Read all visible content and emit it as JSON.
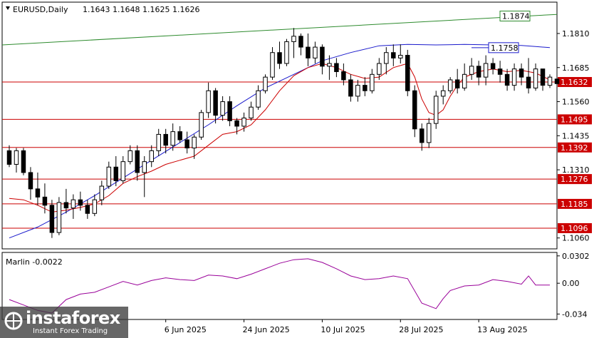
{
  "header": {
    "symbol_tf": "EURUSD,Daily",
    "ohlc": "1.1643 1.1648 1.1625 1.1626"
  },
  "indicator": {
    "label": "Marlin -0.0022",
    "ticks": [
      "0.0302",
      "0.00",
      "-0.034"
    ]
  },
  "price_axis": {
    "ticks": [
      "1.1810",
      "1.1685",
      "1.1560",
      "1.1435",
      "1.1310",
      "1.1060"
    ]
  },
  "levels": [
    {
      "price": 1.1632,
      "label": "1.1632",
      "color": "#cc0000"
    },
    {
      "price": 1.1495,
      "label": "1.1495",
      "color": "#cc0000"
    },
    {
      "price": 1.1392,
      "label": "1.1392",
      "color": "#cc0000"
    },
    {
      "price": 1.1276,
      "label": "1.1276",
      "color": "#cc0000"
    },
    {
      "price": 1.1185,
      "label": "1.1185",
      "color": "#cc0000"
    },
    {
      "price": 1.1096,
      "label": "1.1096",
      "color": "#cc0000"
    }
  ],
  "badges": [
    {
      "price": 1.1874,
      "label": "1.1874",
      "color": "#2e8b2e"
    },
    {
      "price": 1.1758,
      "label": "1.1758",
      "color": "#1a1acc"
    }
  ],
  "date_axis": {
    "labels": [
      "6 Jun 2025",
      "24 Jun 2025",
      "10 Jul 2025",
      "28 Jul 2025",
      "13 Aug 2025"
    ]
  },
  "logo": {
    "brand": "instaforex",
    "tagline": "Instant Forex Trading"
  },
  "colors": {
    "bull": "#ffffff",
    "bear": "#000000",
    "fast_ma": "#cc0000",
    "slow_ma": "#1a1acc",
    "trendline": "#2e8b2e",
    "oscillator": "#990099"
  },
  "chart_data": {
    "type": "candlestick",
    "ylim": [
      1.102,
      1.1925
    ],
    "osc_ylim": [
      -0.04,
      0.034
    ],
    "x_range": [
      -1,
      77
    ],
    "date_axis_index": [
      22,
      33,
      44,
      55,
      66
    ],
    "candles": [
      [
        1.138,
        1.14,
        1.132,
        1.133
      ],
      [
        1.133,
        1.139,
        1.13,
        1.138
      ],
      [
        1.138,
        1.139,
        1.129,
        1.13
      ],
      [
        1.13,
        1.132,
        1.12,
        1.124
      ],
      [
        1.124,
        1.13,
        1.118,
        1.121
      ],
      [
        1.121,
        1.126,
        1.115,
        1.118
      ],
      [
        1.118,
        1.12,
        1.106,
        1.108
      ],
      [
        1.108,
        1.121,
        1.107,
        1.119
      ],
      [
        1.119,
        1.124,
        1.115,
        1.117
      ],
      [
        1.117,
        1.122,
        1.113,
        1.12
      ],
      [
        1.12,
        1.123,
        1.116,
        1.118
      ],
      [
        1.118,
        1.12,
        1.113,
        1.115
      ],
      [
        1.115,
        1.122,
        1.114,
        1.12
      ],
      [
        1.12,
        1.127,
        1.118,
        1.125
      ],
      [
        1.125,
        1.134,
        1.124,
        1.132
      ],
      [
        1.132,
        1.136,
        1.125,
        1.127
      ],
      [
        1.127,
        1.136,
        1.126,
        1.134
      ],
      [
        1.134,
        1.14,
        1.133,
        1.138
      ],
      [
        1.138,
        1.14,
        1.127,
        1.13
      ],
      [
        1.13,
        1.136,
        1.121,
        1.134
      ],
      [
        1.134,
        1.14,
        1.132,
        1.138
      ],
      [
        1.138,
        1.146,
        1.136,
        1.144
      ],
      [
        1.144,
        1.146,
        1.137,
        1.14
      ],
      [
        1.14,
        1.148,
        1.138,
        1.145
      ],
      [
        1.145,
        1.147,
        1.141,
        1.142
      ],
      [
        1.142,
        1.145,
        1.137,
        1.139
      ],
      [
        1.139,
        1.144,
        1.135,
        1.143
      ],
      [
        1.143,
        1.153,
        1.142,
        1.152
      ],
      [
        1.152,
        1.163,
        1.15,
        1.16
      ],
      [
        1.16,
        1.161,
        1.148,
        1.151
      ],
      [
        1.151,
        1.158,
        1.149,
        1.156
      ],
      [
        1.156,
        1.158,
        1.147,
        1.149
      ],
      [
        1.149,
        1.15,
        1.144,
        1.147
      ],
      [
        1.147,
        1.152,
        1.145,
        1.15
      ],
      [
        1.15,
        1.156,
        1.149,
        1.154
      ],
      [
        1.154,
        1.162,
        1.153,
        1.16
      ],
      [
        1.16,
        1.166,
        1.159,
        1.165
      ],
      [
        1.165,
        1.176,
        1.164,
        1.174
      ],
      [
        1.174,
        1.178,
        1.168,
        1.17
      ],
      [
        1.17,
        1.179,
        1.169,
        1.178
      ],
      [
        1.178,
        1.183,
        1.172,
        1.18
      ],
      [
        1.18,
        1.181,
        1.173,
        1.176
      ],
      [
        1.176,
        1.181,
        1.169,
        1.172
      ],
      [
        1.172,
        1.178,
        1.17,
        1.176
      ],
      [
        1.176,
        1.177,
        1.166,
        1.169
      ],
      [
        1.169,
        1.173,
        1.164,
        1.17
      ],
      [
        1.17,
        1.172,
        1.165,
        1.167
      ],
      [
        1.167,
        1.17,
        1.162,
        1.164
      ],
      [
        1.164,
        1.166,
        1.156,
        1.158
      ],
      [
        1.158,
        1.164,
        1.156,
        1.162
      ],
      [
        1.162,
        1.165,
        1.158,
        1.16
      ],
      [
        1.16,
        1.168,
        1.159,
        1.166
      ],
      [
        1.166,
        1.172,
        1.164,
        1.17
      ],
      [
        1.17,
        1.176,
        1.166,
        1.174
      ],
      [
        1.174,
        1.177,
        1.169,
        1.172
      ],
      [
        1.172,
        1.177,
        1.17,
        1.173
      ],
      [
        1.173,
        1.175,
        1.158,
        1.16
      ],
      [
        1.16,
        1.162,
        1.143,
        1.146
      ],
      [
        1.146,
        1.148,
        1.138,
        1.141
      ],
      [
        1.141,
        1.15,
        1.139,
        1.148
      ],
      [
        1.148,
        1.16,
        1.146,
        1.158
      ],
      [
        1.158,
        1.162,
        1.155,
        1.16
      ],
      [
        1.16,
        1.165,
        1.159,
        1.164
      ],
      [
        1.164,
        1.168,
        1.159,
        1.161
      ],
      [
        1.161,
        1.17,
        1.16,
        1.166
      ],
      [
        1.166,
        1.172,
        1.164,
        1.169
      ],
      [
        1.169,
        1.171,
        1.162,
        1.165
      ],
      [
        1.165,
        1.173,
        1.162,
        1.17
      ],
      [
        1.17,
        1.172,
        1.166,
        1.168
      ],
      [
        1.168,
        1.171,
        1.163,
        1.166
      ],
      [
        1.166,
        1.168,
        1.16,
        1.162
      ],
      [
        1.162,
        1.17,
        1.16,
        1.168
      ],
      [
        1.168,
        1.17,
        1.162,
        1.165
      ],
      [
        1.165,
        1.172,
        1.159,
        1.161
      ],
      [
        1.161,
        1.17,
        1.16,
        1.168
      ],
      [
        1.168,
        1.168,
        1.16,
        1.162
      ],
      [
        1.162,
        1.166,
        1.161,
        1.165
      ],
      [
        1.1643,
        1.1648,
        1.1625,
        1.1626
      ]
    ],
    "fast_ma": [
      [
        0,
        1.1205
      ],
      [
        2,
        1.12
      ],
      [
        4,
        1.118
      ],
      [
        6,
        1.1155
      ],
      [
        8,
        1.1162
      ],
      [
        10,
        1.1172
      ],
      [
        12,
        1.1185
      ],
      [
        14,
        1.1215
      ],
      [
        16,
        1.126
      ],
      [
        18,
        1.1285
      ],
      [
        20,
        1.1305
      ],
      [
        22,
        1.133
      ],
      [
        24,
        1.1345
      ],
      [
        26,
        1.136
      ],
      [
        28,
        1.14
      ],
      [
        30,
        1.144
      ],
      [
        32,
        1.145
      ],
      [
        34,
        1.1475
      ],
      [
        36,
        1.153
      ],
      [
        38,
        1.16
      ],
      [
        40,
        1.1655
      ],
      [
        42,
        1.1685
      ],
      [
        44,
        1.17
      ],
      [
        46,
        1.1685
      ],
      [
        48,
        1.166
      ],
      [
        50,
        1.1645
      ],
      [
        52,
        1.165
      ],
      [
        54,
        1.1685
      ],
      [
        56,
        1.17
      ],
      [
        57,
        1.165
      ],
      [
        58,
        1.157
      ],
      [
        59,
        1.152
      ],
      [
        60,
        1.151
      ],
      [
        61,
        1.153
      ],
      [
        62,
        1.158
      ],
      [
        63,
        1.162
      ],
      [
        64,
        1.165
      ],
      [
        66,
        1.167
      ],
      [
        68,
        1.168
      ],
      [
        70,
        1.167
      ],
      [
        72,
        1.1675
      ],
      [
        74,
        1.1665
      ],
      [
        76,
        1.164
      ]
    ],
    "slow_ma": [
      [
        0,
        1.106
      ],
      [
        4,
        1.11
      ],
      [
        8,
        1.1155
      ],
      [
        12,
        1.1215
      ],
      [
        16,
        1.128
      ],
      [
        20,
        1.1345
      ],
      [
        24,
        1.141
      ],
      [
        28,
        1.1475
      ],
      [
        32,
        1.1545
      ],
      [
        36,
        1.161
      ],
      [
        40,
        1.166
      ],
      [
        44,
        1.171
      ],
      [
        48,
        1.174
      ],
      [
        52,
        1.1765
      ],
      [
        56,
        1.177
      ],
      [
        60,
        1.1768
      ],
      [
        64,
        1.177
      ],
      [
        68,
        1.1768
      ],
      [
        72,
        1.1766
      ],
      [
        74,
        1.1762
      ],
      [
        76,
        1.1758
      ]
    ],
    "trendline": [
      [
        -1,
        1.1768
      ],
      [
        77,
        1.188
      ]
    ],
    "oscillator": [
      [
        0,
        -0.018
      ],
      [
        2,
        -0.024
      ],
      [
        4,
        -0.03
      ],
      [
        6,
        -0.033
      ],
      [
        8,
        -0.018
      ],
      [
        10,
        -0.012
      ],
      [
        12,
        -0.01
      ],
      [
        14,
        -0.004
      ],
      [
        16,
        0.002
      ],
      [
        18,
        -0.002
      ],
      [
        20,
        0.003
      ],
      [
        22,
        0.006
      ],
      [
        24,
        0.004
      ],
      [
        26,
        0.003
      ],
      [
        28,
        0.009
      ],
      [
        30,
        0.008
      ],
      [
        32,
        0.005
      ],
      [
        34,
        0.01
      ],
      [
        36,
        0.016
      ],
      [
        38,
        0.022
      ],
      [
        40,
        0.026
      ],
      [
        42,
        0.027
      ],
      [
        44,
        0.023
      ],
      [
        46,
        0.016
      ],
      [
        48,
        0.008
      ],
      [
        50,
        0.004
      ],
      [
        52,
        0.005
      ],
      [
        54,
        0.008
      ],
      [
        56,
        0.005
      ],
      [
        58,
        -0.022
      ],
      [
        60,
        -0.028
      ],
      [
        61,
        -0.017
      ],
      [
        62,
        -0.008
      ],
      [
        64,
        -0.003
      ],
      [
        66,
        -0.002
      ],
      [
        68,
        0.004
      ],
      [
        70,
        0.002
      ],
      [
        72,
        -0.001
      ],
      [
        73,
        0.008
      ],
      [
        74,
        -0.002
      ],
      [
        76,
        -0.002
      ]
    ]
  }
}
